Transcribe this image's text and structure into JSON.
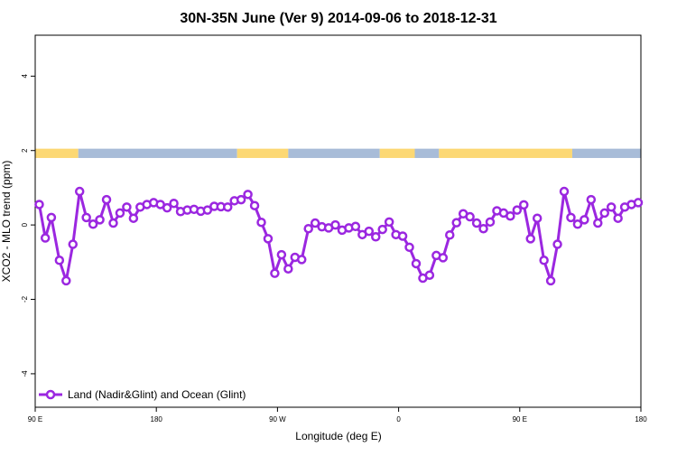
{
  "chart_data": {
    "type": "line",
    "title": "30N-35N June (Ver 9)   2014-09-06 to 2018-12-31",
    "xlabel": "Longitude (deg E)",
    "ylabel": "XCO2 - MLO trend (ppm)",
    "xlim": [
      90,
      540
    ],
    "ylim": [
      -4.9,
      5.1
    ],
    "x_ticks": [
      {
        "value": 90,
        "label": "90 E"
      },
      {
        "value": 180,
        "label": "180"
      },
      {
        "value": 270,
        "label": "90 W"
      },
      {
        "value": 360,
        "label": "0"
      },
      {
        "value": 450,
        "label": "90 E"
      },
      {
        "value": 540,
        "label": "180"
      }
    ],
    "y_ticks": [
      {
        "value": -4,
        "label": "-4"
      },
      {
        "value": -2,
        "label": "-2"
      },
      {
        "value": 0,
        "label": "0"
      },
      {
        "value": 2,
        "label": "2"
      },
      {
        "value": 4,
        "label": "4"
      }
    ],
    "grid": false,
    "legend_position": "bottom-left",
    "series": [
      {
        "name": "Land (Nadir&Glint) and Ocean (Glint)",
        "color": "#9b27e0",
        "x": [
          93,
          97.5,
          102,
          108,
          113,
          118,
          123,
          128,
          133,
          138,
          143,
          148,
          153,
          158,
          163,
          168,
          173,
          178,
          183,
          188,
          193,
          198,
          203,
          208,
          213,
          218,
          223,
          228,
          233,
          238,
          243,
          248,
          253,
          258,
          263,
          268,
          273,
          278,
          283,
          288,
          293,
          298,
          303,
          308,
          313,
          318,
          323,
          328,
          333,
          338,
          343,
          348,
          353,
          358,
          363,
          368,
          373,
          378,
          383,
          388,
          393,
          398,
          403,
          408,
          413,
          418,
          423,
          428,
          433,
          438,
          443,
          448,
          453,
          458,
          463,
          468,
          473,
          478,
          483,
          488,
          493,
          498,
          503,
          508,
          513,
          518,
          523,
          528,
          533,
          538
        ],
        "y": [
          0.55,
          -0.35,
          0.2,
          -0.95,
          -1.5,
          -0.52,
          0.9,
          0.2,
          0.02,
          0.14,
          0.68,
          0.05,
          0.32,
          0.48,
          0.18,
          0.48,
          0.55,
          0.6,
          0.55,
          0.46,
          0.58,
          0.36,
          0.4,
          0.42,
          0.37,
          0.4,
          0.5,
          0.49,
          0.48,
          0.65,
          0.68,
          0.82,
          0.52,
          0.07,
          -0.37,
          -1.3,
          -0.8,
          -1.18,
          -0.87,
          -0.93,
          -0.1,
          0.05,
          -0.05,
          -0.08,
          0.0,
          -0.14,
          -0.08,
          -0.04,
          -0.26,
          -0.17,
          -0.32,
          -0.12,
          0.08,
          -0.26,
          -0.3,
          -0.6,
          -1.04,
          -1.43,
          -1.35,
          -0.82,
          -0.88,
          -0.27,
          0.06,
          0.3,
          0.22,
          0.05,
          -0.1,
          0.08,
          0.38,
          0.32,
          0.24,
          0.4,
          0.54,
          -0.37,
          0.18,
          -0.95,
          -1.5,
          -0.52,
          0.9,
          0.2,
          0.02,
          0.14,
          0.68,
          0.05,
          0.32,
          0.48,
          0.18,
          0.48,
          0.55,
          0.6
        ]
      }
    ],
    "surface_band": {
      "y_range": [
        1.8,
        2.05
      ],
      "colors": {
        "land": "#fcd874",
        "ocean": "#a8bcd8"
      },
      "segments": [
        {
          "from": 90,
          "to": 122,
          "type": "land"
        },
        {
          "from": 122,
          "to": 240,
          "type": "ocean"
        },
        {
          "from": 240,
          "to": 278,
          "type": "land"
        },
        {
          "from": 278,
          "to": 346,
          "type": "ocean"
        },
        {
          "from": 346,
          "to": 372,
          "type": "land"
        },
        {
          "from": 372,
          "to": 390,
          "type": "ocean"
        },
        {
          "from": 390,
          "to": 489,
          "type": "land"
        },
        {
          "from": 489,
          "to": 540,
          "type": "ocean"
        }
      ]
    }
  }
}
